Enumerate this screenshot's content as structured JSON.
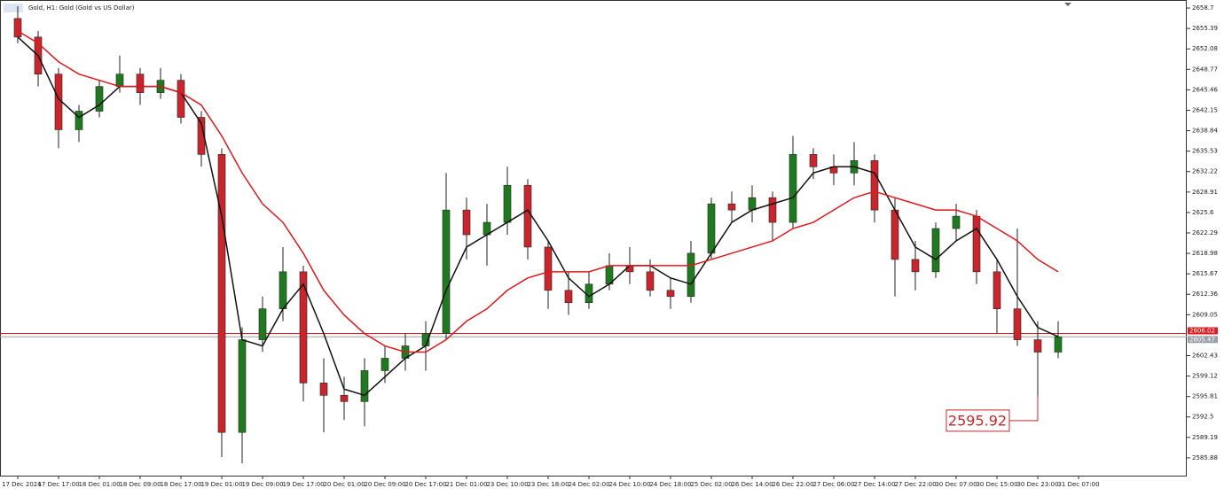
{
  "chart_data": {
    "type": "candlestick",
    "title": "Gold, H1:  Gold (Gold vs US Dollar)",
    "x_labels": [
      "17 Dec 2024",
      "17 Dec 17:00",
      "18 Dec 01:00",
      "18 Dec 09:00",
      "18 Dec 17:00",
      "19 Dec 01:00",
      "19 Dec 09:00",
      "19 Dec 17:00",
      "20 Dec 01:00",
      "20 Dec 09:00",
      "20 Dec 17:00",
      "21 Dec 01:00",
      "23 Dec 10:00",
      "23 Dec 18:00",
      "24 Dec 02:00",
      "24 Dec 10:00",
      "24 Dec 18:00",
      "25 Dec 02:00",
      "26 Dec 14:00",
      "26 Dec 22:00",
      "27 Dec 06:00",
      "27 Dec 14:00",
      "27 Dec 22:00",
      "30 Dec 07:00",
      "30 Dec 15:00",
      "30 Dec 23:00",
      "31 Dec 07:00"
    ],
    "open": [
      2657,
      2654,
      2648,
      2639,
      2642,
      2646,
      2648,
      2645,
      2647,
      2641,
      2635,
      2590,
      2605,
      2610,
      2616,
      2598,
      2596,
      2595,
      2600,
      2602,
      2604,
      2606,
      2626,
      2622,
      2624,
      2630,
      2620,
      2613,
      2611,
      2614,
      2617,
      2616,
      2613,
      2612,
      2619,
      2627,
      2626,
      2628,
      2624,
      2635,
      2633,
      2632,
      2634,
      2626,
      2618,
      2616,
      2623,
      2625,
      2616,
      2610,
      2605,
      2603
    ],
    "high": [
      2659,
      2655,
      2649,
      2643,
      2647,
      2651,
      2649,
      2649,
      2648,
      2642,
      2636,
      2607,
      2612,
      2620,
      2617,
      2602,
      2599,
      2602,
      2604,
      2606,
      2608,
      2632,
      2628,
      2627,
      2633,
      2631,
      2621,
      2616,
      2616,
      2619,
      2620,
      2618,
      2615,
      2621,
      2628,
      2629,
      2630,
      2629,
      2638,
      2636,
      2635,
      2637,
      2635,
      2628,
      2621,
      2624,
      2627,
      2626,
      2618,
      2623,
      2608,
      2608
    ],
    "low": [
      2653,
      2646,
      2636,
      2637,
      2641,
      2645,
      2643,
      2644,
      2640,
      2633,
      2586,
      2585,
      2603,
      2608,
      2595,
      2590,
      2592,
      2591,
      2598,
      2600,
      2600,
      2605,
      2618,
      2617,
      2622,
      2618,
      2610,
      2609,
      2610,
      2613,
      2614,
      2612,
      2610,
      2611,
      2618,
      2624,
      2624,
      2621,
      2623,
      2631,
      2630,
      2630,
      2624,
      2612,
      2613,
      2615,
      2621,
      2614,
      2606,
      2604,
      2595.92,
      2602
    ],
    "close": [
      2654,
      2648,
      2639,
      2642,
      2646,
      2648,
      2645,
      2647,
      2641,
      2635,
      2590,
      2605,
      2610,
      2616,
      2598,
      2596,
      2595,
      2600,
      2602,
      2604,
      2606,
      2626,
      2622,
      2624,
      2630,
      2620,
      2613,
      2611,
      2614,
      2617,
      2616,
      2613,
      2612,
      2619,
      2627,
      2626,
      2628,
      2624,
      2635,
      2633,
      2632,
      2634,
      2626,
      2618,
      2616,
      2623,
      2625,
      2616,
      2610,
      2605,
      2603,
      2605.47
    ],
    "up_color": "#1f7a1f",
    "down_color": "#c8262c",
    "series": [
      {
        "color": "#111111",
        "values": [
          2654,
          2651,
          2644,
          2641,
          2643,
          2646,
          2646,
          2646,
          2645,
          2640,
          2625,
          2605,
          2604,
          2610,
          2614,
          2606,
          2597,
          2596,
          2599,
          2602,
          2604,
          2613,
          2620,
          2622,
          2624,
          2626,
          2621,
          2615,
          2612,
          2614,
          2617,
          2617,
          2615,
          2614,
          2619,
          2624,
          2626,
          2627,
          2628,
          2632,
          2633,
          2633,
          2632,
          2626,
          2620,
          2618,
          2621,
          2623,
          2618,
          2612,
          2607,
          2605.5
        ]
      },
      {
        "color": "#e0191e",
        "values": [
          2655,
          2653,
          2650,
          2648,
          2647,
          2646,
          2646,
          2646,
          2645,
          2643,
          2638,
          2632,
          2627,
          2624,
          2619,
          2613,
          2609,
          2606,
          2604,
          2603,
          2603,
          2605,
          2608,
          2610,
          2613,
          2615,
          2616,
          2616,
          2616,
          2617,
          2617,
          2617,
          2617,
          2617,
          2618,
          2619,
          2620,
          2621,
          2623,
          2624,
          2626,
          2628,
          2629,
          2628,
          2627,
          2626,
          2626,
          2625,
          2623,
          2621,
          2618,
          2616
        ]
      }
    ],
    "ylim": [
      2583.0,
      2660.0
    ],
    "yticks": [
      2658.7,
      2655.39,
      2652.08,
      2648.77,
      2645.46,
      2642.15,
      2638.84,
      2635.53,
      2632.22,
      2628.91,
      2625.6,
      2622.29,
      2618.98,
      2615.67,
      2612.36,
      2609.05,
      2602.43,
      2599.12,
      2595.81,
      2592.5,
      2589.19,
      2585.88
    ],
    "price_lines": [
      {
        "value": 2606.02,
        "label": "2606.02",
        "color": "#e0191e"
      },
      {
        "value": 2605.47,
        "label": "2605.47",
        "color": "#9aa0a6"
      }
    ],
    "annotation": {
      "value": 2595.92,
      "label": "2595.92",
      "candle": 50
    }
  }
}
